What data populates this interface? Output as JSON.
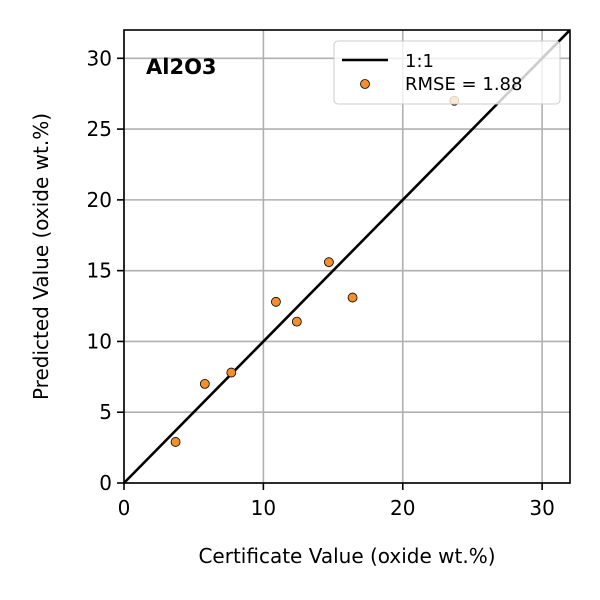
{
  "chart_data": {
    "type": "scatter",
    "title": "Al2O3",
    "xlabel": "Certificate Value (oxide wt.%)",
    "ylabel": "Predicted Value (oxide wt.%)",
    "xlim": [
      0,
      32
    ],
    "ylim": [
      0,
      32
    ],
    "xticks": [
      0,
      10,
      20,
      30
    ],
    "yticks": [
      0,
      5,
      10,
      15,
      20,
      25,
      30
    ],
    "grid": true,
    "legend_position": "top-right",
    "reference_line": {
      "label": "1:1",
      "x": [
        0,
        32
      ],
      "y": [
        0,
        32
      ],
      "color": "#000000"
    },
    "series": [
      {
        "name": "RMSE = 1.88",
        "color": "#f28e2b",
        "edge_color": "#000000",
        "points": [
          {
            "x": 3.7,
            "y": 2.9
          },
          {
            "x": 5.8,
            "y": 7.0
          },
          {
            "x": 7.7,
            "y": 7.8
          },
          {
            "x": 10.9,
            "y": 12.8
          },
          {
            "x": 12.4,
            "y": 11.4
          },
          {
            "x": 14.7,
            "y": 15.6
          },
          {
            "x": 16.4,
            "y": 13.1
          },
          {
            "x": 23.7,
            "y": 27.0
          }
        ]
      }
    ]
  }
}
